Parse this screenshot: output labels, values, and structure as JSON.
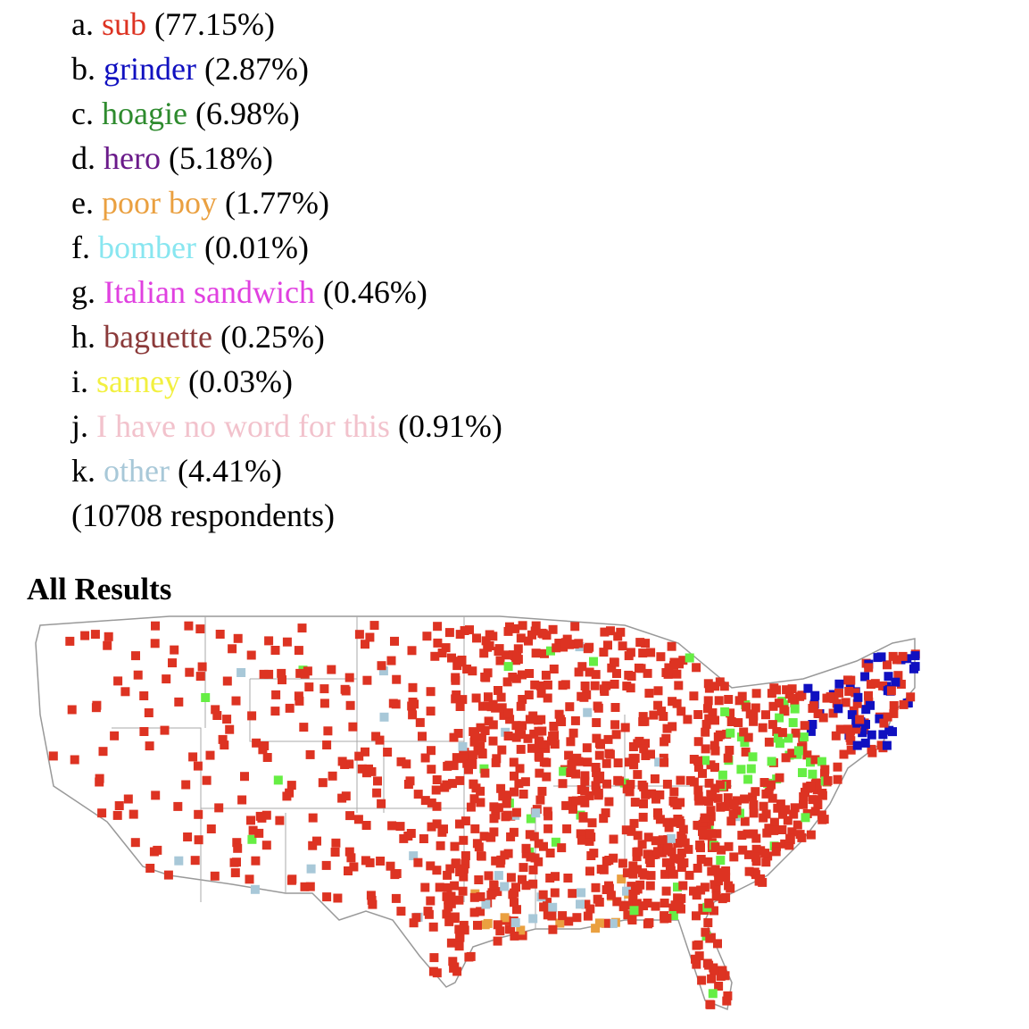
{
  "options": [
    {
      "letter": "a.",
      "term": "sub",
      "percent": "(77.15%)",
      "color": "#dd3322"
    },
    {
      "letter": "b.",
      "term": "grinder",
      "percent": "(2.87%)",
      "color": "#1010c0"
    },
    {
      "letter": "c.",
      "term": "hoagie",
      "percent": "(6.98%)",
      "color": "#2e8b2e"
    },
    {
      "letter": "d.",
      "term": "hero",
      "percent": "(5.18%)",
      "color": "#6a1a8a"
    },
    {
      "letter": "e.",
      "term": "poor boy",
      "percent": "(1.77%)",
      "color": "#eaa040"
    },
    {
      "letter": "f.",
      "term": "bomber",
      "percent": "(0.01%)",
      "color": "#88e6f0"
    },
    {
      "letter": "g.",
      "term": "Italian sandwich",
      "percent": "(0.46%)",
      "color": "#e040e0"
    },
    {
      "letter": "h.",
      "term": "baguette",
      "percent": "(0.25%)",
      "color": "#8b3a3a"
    },
    {
      "letter": "i.",
      "term": "sarney",
      "percent": "(0.03%)",
      "color": "#f2f040"
    },
    {
      "letter": "j.",
      "term": "I have no word for this",
      "percent": "(0.91%)",
      "color": "#f2c2cc"
    },
    {
      "letter": "k.",
      "term": "other",
      "percent": "(4.41%)",
      "color": "#a8c8d8"
    }
  ],
  "respondents": "(10708 respondents)",
  "heading": "All Results"
}
